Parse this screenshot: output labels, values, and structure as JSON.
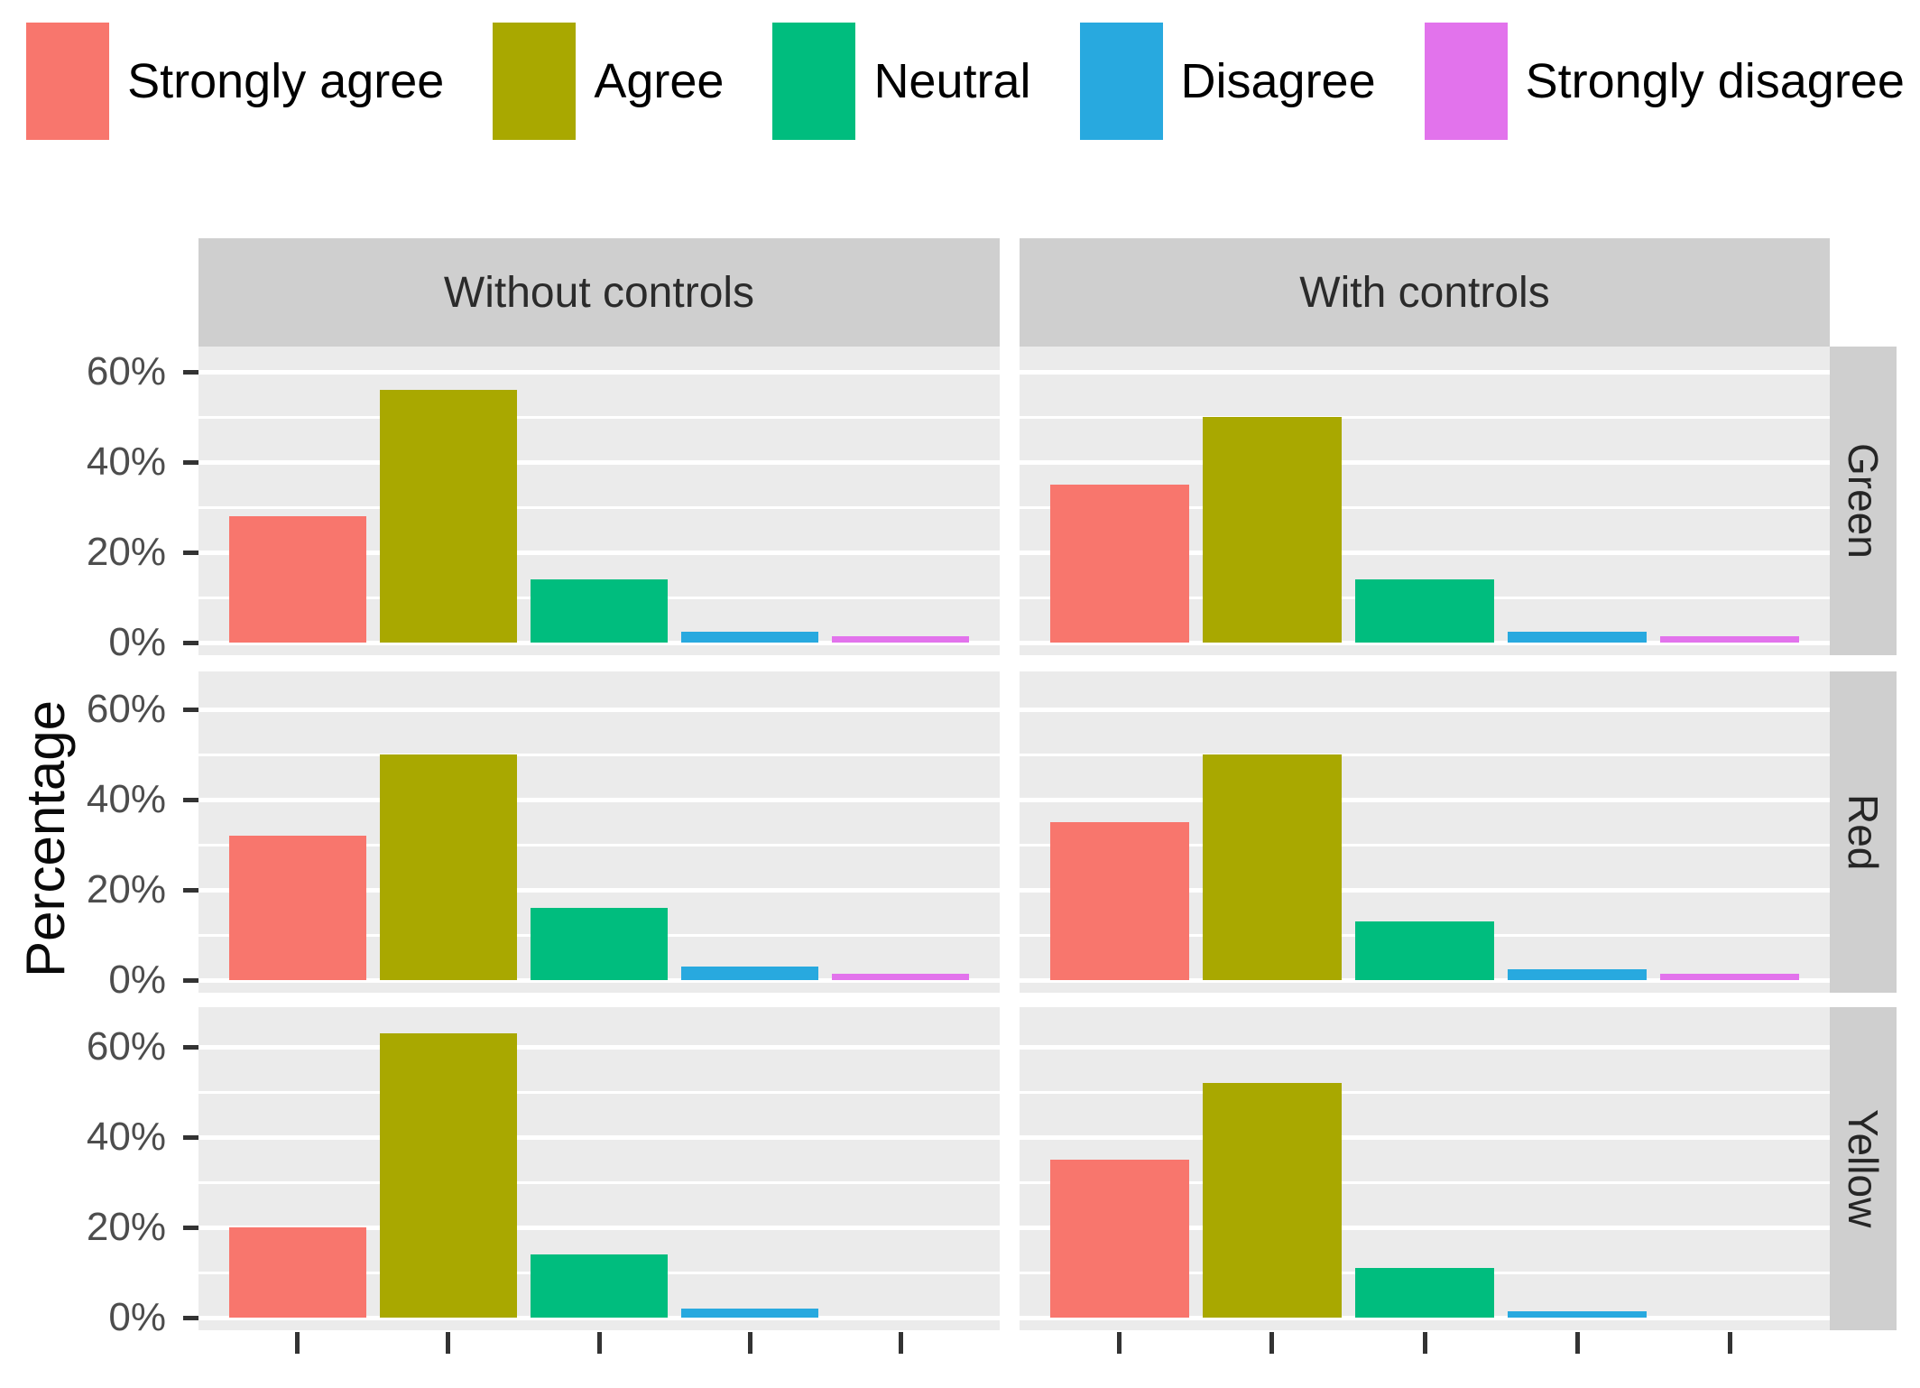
{
  "legend": {
    "items": [
      {
        "label": "Strongly agree",
        "color": "#F8766D"
      },
      {
        "label": "Agree",
        "color": "#A9A800"
      },
      {
        "label": "Neutral",
        "color": "#00BD7E"
      },
      {
        "label": "Disagree",
        "color": "#28A9DF"
      },
      {
        "label": "Strongly disagree",
        "color": "#E273EC"
      }
    ]
  },
  "axes": {
    "y_label": "Percentage",
    "y_ticks": [
      "0%",
      "20%",
      "40%",
      "60%"
    ],
    "y_tick_values": [
      0,
      20,
      40,
      60
    ],
    "y_minor_values": [
      10,
      30,
      50
    ]
  },
  "facets": {
    "columns": [
      "Without controls",
      "With controls"
    ],
    "rows": [
      "Green",
      "Red",
      "Yellow"
    ]
  },
  "chart_data": {
    "type": "bar",
    "categories": [
      "Strongly agree",
      "Agree",
      "Neutral",
      "Disagree",
      "Strongly disagree"
    ],
    "colors": [
      "#F8766D",
      "#A9A800",
      "#00BD7E",
      "#28A9DF",
      "#E273EC"
    ],
    "unit": "percent",
    "ylabel": "Percentage",
    "ylim": [
      0,
      66
    ],
    "grid": "on",
    "legend_position": "top",
    "facets": [
      {
        "row": "Green",
        "column": "Without controls",
        "values": [
          28,
          56,
          14,
          2.5,
          1.5
        ]
      },
      {
        "row": "Green",
        "column": "With controls",
        "values": [
          35,
          50,
          14,
          2.5,
          1.5
        ]
      },
      {
        "row": "Red",
        "column": "Without controls",
        "values": [
          32,
          50,
          16,
          3,
          1.5
        ]
      },
      {
        "row": "Red",
        "column": "With controls",
        "values": [
          35,
          50,
          13,
          2.5,
          1.5
        ]
      },
      {
        "row": "Yellow",
        "column": "Without controls",
        "values": [
          20,
          63,
          14,
          2,
          0
        ]
      },
      {
        "row": "Yellow",
        "column": "With controls",
        "values": [
          35,
          52,
          11,
          1.5,
          0
        ]
      }
    ]
  },
  "colors": {
    "panel_bg": "#EBEBEB",
    "strip_bg": "#CFCFCF",
    "grid": "#FFFFFF",
    "tick": "#333333",
    "axis_text": "#4D4D4D"
  }
}
